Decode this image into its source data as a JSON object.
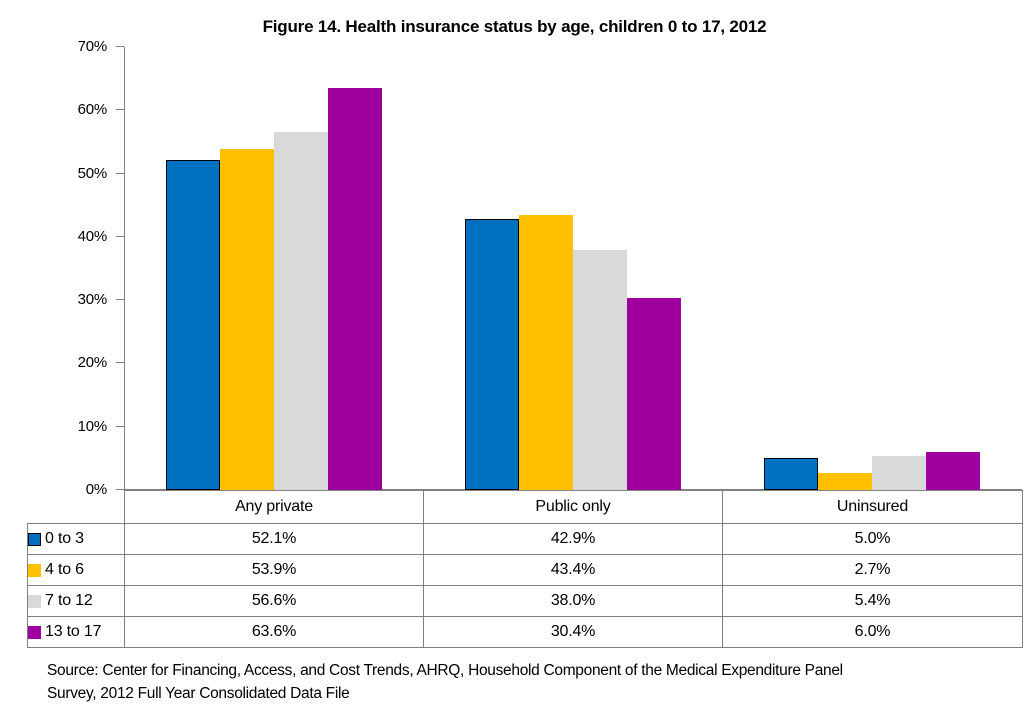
{
  "chart_data": {
    "type": "bar",
    "title": "Figure 14.  Health insurance status by age, children 0 to 17, 2012",
    "categories": [
      "Any private",
      "Public only",
      "Uninsured"
    ],
    "series": [
      {
        "name": "0 to 3",
        "color": "#0070C0",
        "border_color": "#000000",
        "values": [
          52.1,
          42.9,
          5.0
        ]
      },
      {
        "name": "4 to 6",
        "color": "#FFC000",
        "values": [
          53.9,
          43.4,
          2.7
        ]
      },
      {
        "name": "7 to 12",
        "color": "#D9D9D9",
        "values": [
          56.6,
          38.0,
          5.4
        ]
      },
      {
        "name": "13 to 17",
        "color": "#9E009E",
        "values": [
          63.6,
          30.4,
          6.0
        ]
      }
    ],
    "ylim": [
      0,
      70
    ],
    "ytick_step": 10,
    "ytick_suffix": "%",
    "value_suffix": "%",
    "value_decimals": 1,
    "grid": false,
    "legend_position": "table-rows-left",
    "axis_color": "#808080",
    "table_border_color": "#808080"
  },
  "source": {
    "line1": "Source: Center for Financing, Access, and Cost Trends, AHRQ, Household Component of the Medical Expenditure Panel",
    "line2": "Survey, 2012 Full Year Consolidated Data File"
  }
}
